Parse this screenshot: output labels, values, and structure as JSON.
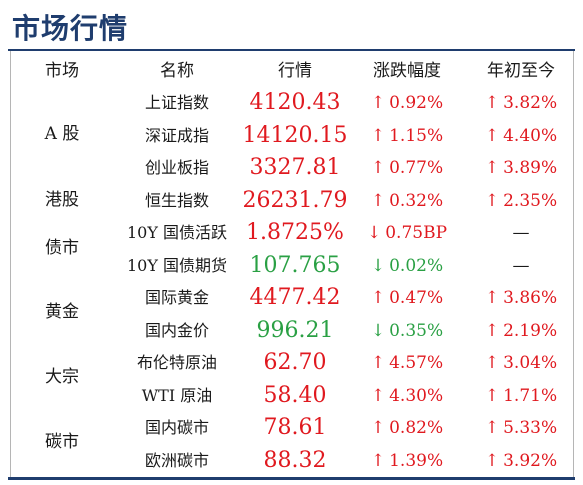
{
  "title": "市场行情",
  "headers": {
    "market": "市场",
    "name": "名称",
    "price": "行情",
    "change": "涨跌幅度",
    "ytd": "年初至今"
  },
  "markets": [
    {
      "label": "A 股"
    },
    {
      "label": "港股"
    },
    {
      "label": "债市"
    },
    {
      "label": "黄金"
    },
    {
      "label": "大宗"
    },
    {
      "label": "碳市"
    }
  ],
  "rows": [
    {
      "name": "上证指数",
      "price": "4120.43",
      "price_trend": "up",
      "change": "0.92%",
      "change_dir": "up",
      "ytd": "3.82%",
      "ytd_dir": "up"
    },
    {
      "name": "深证成指",
      "price": "14120.15",
      "price_trend": "up",
      "change": "1.15%",
      "change_dir": "up",
      "ytd": "4.40%",
      "ytd_dir": "up"
    },
    {
      "name": "创业板指",
      "price": "3327.81",
      "price_trend": "up",
      "change": "0.77%",
      "change_dir": "up",
      "ytd": "3.89%",
      "ytd_dir": "up"
    },
    {
      "name": "恒生指数",
      "price": "26231.79",
      "price_trend": "up",
      "change": "0.32%",
      "change_dir": "up",
      "ytd": "2.35%",
      "ytd_dir": "up"
    },
    {
      "name": "10Y 国债活跃",
      "price": "1.8725%",
      "price_trend": "up",
      "change": "0.75BP",
      "change_dir": "down-red",
      "ytd": "—",
      "ytd_dir": "none"
    },
    {
      "name": "10Y 国债期货",
      "price": "107.765",
      "price_trend": "down",
      "change": "0.02%",
      "change_dir": "down",
      "ytd": "—",
      "ytd_dir": "none"
    },
    {
      "name": "国际黄金",
      "price": "4477.42",
      "price_trend": "up",
      "change": "0.47%",
      "change_dir": "up",
      "ytd": "3.86%",
      "ytd_dir": "up"
    },
    {
      "name": "国内金价",
      "price": "996.21",
      "price_trend": "down",
      "change": "0.35%",
      "change_dir": "down",
      "ytd": "2.19%",
      "ytd_dir": "up"
    },
    {
      "name": "布伦特原油",
      "price": "62.70",
      "price_trend": "up",
      "change": "4.57%",
      "change_dir": "up",
      "ytd": "3.04%",
      "ytd_dir": "up"
    },
    {
      "name": "WTI 原油",
      "price": "58.40",
      "price_trend": "up",
      "change": "4.30%",
      "change_dir": "up",
      "ytd": "1.71%",
      "ytd_dir": "up"
    },
    {
      "name": "国内碳市",
      "price": "78.61",
      "price_trend": "up",
      "change": "0.82%",
      "change_dir": "up",
      "ytd": "5.33%",
      "ytd_dir": "up"
    },
    {
      "name": "欧洲碳市",
      "price": "88.32",
      "price_trend": "up",
      "change": "1.39%",
      "change_dir": "up",
      "ytd": "3.92%",
      "ytd_dir": "up"
    }
  ],
  "colors": {
    "up": "#e0191f",
    "down": "#2aa044",
    "accent": "#1f3d6e"
  }
}
